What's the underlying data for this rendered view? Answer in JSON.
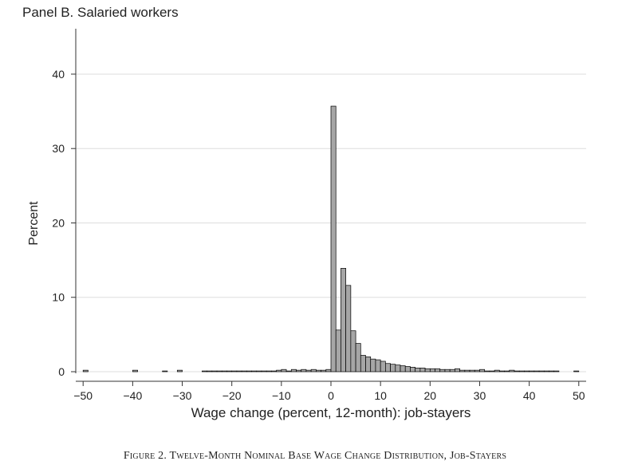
{
  "panel_title": "Panel B. Salaried workers",
  "figure_caption": "Figure 2. Twelve-Month Nominal Base Wage Change Distribution, Job-Stayers",
  "colors": {
    "bar_fill": "#a6a6a6",
    "bar_stroke": "#000000",
    "grid": "#dedede",
    "axis": "#333333"
  },
  "chart_data": {
    "type": "bar",
    "title": "Panel B. Salaried workers",
    "xlabel": "Wage change (percent, 12-month): job-stayers",
    "ylabel": "Percent",
    "xlim": [
      -51,
      51
    ],
    "ylim": [
      0,
      46
    ],
    "xticks": [
      -50,
      -40,
      -30,
      -20,
      -10,
      0,
      10,
      20,
      30,
      40,
      50
    ],
    "xtick_labels": [
      "−50",
      "−40",
      "−30",
      "−20",
      "−10",
      "0",
      "10",
      "20",
      "30",
      "40",
      "50"
    ],
    "yticks": [
      0,
      10,
      20,
      30,
      40
    ],
    "ytick_labels": [
      "0",
      "10",
      "20",
      "30",
      "40"
    ],
    "grid": true,
    "bin_width": 1,
    "bins": [
      {
        "x": -50,
        "y": 0.2
      },
      {
        "x": -40,
        "y": 0.2
      },
      {
        "x": -34,
        "y": 0.1
      },
      {
        "x": -31,
        "y": 0.2
      },
      {
        "x": -26,
        "y": 0.1
      },
      {
        "x": -25,
        "y": 0.1
      },
      {
        "x": -24,
        "y": 0.1
      },
      {
        "x": -23,
        "y": 0.1
      },
      {
        "x": -22,
        "y": 0.1
      },
      {
        "x": -21,
        "y": 0.1
      },
      {
        "x": -20,
        "y": 0.1
      },
      {
        "x": -19,
        "y": 0.1
      },
      {
        "x": -18,
        "y": 0.1
      },
      {
        "x": -17,
        "y": 0.1
      },
      {
        "x": -16,
        "y": 0.1
      },
      {
        "x": -15,
        "y": 0.1
      },
      {
        "x": -14,
        "y": 0.1
      },
      {
        "x": -13,
        "y": 0.1
      },
      {
        "x": -12,
        "y": 0.1
      },
      {
        "x": -11,
        "y": 0.2
      },
      {
        "x": -10,
        "y": 0.3
      },
      {
        "x": -9,
        "y": 0.1
      },
      {
        "x": -8,
        "y": 0.3
      },
      {
        "x": -7,
        "y": 0.2
      },
      {
        "x": -6,
        "y": 0.3
      },
      {
        "x": -5,
        "y": 0.2
      },
      {
        "x": -4,
        "y": 0.3
      },
      {
        "x": -3,
        "y": 0.2
      },
      {
        "x": -2,
        "y": 0.2
      },
      {
        "x": -1,
        "y": 0.3
      },
      {
        "x": 0,
        "y": 35.7
      },
      {
        "x": 1,
        "y": 5.6
      },
      {
        "x": 2,
        "y": 13.9
      },
      {
        "x": 3,
        "y": 11.6
      },
      {
        "x": 4,
        "y": 5.5
      },
      {
        "x": 5,
        "y": 3.8
      },
      {
        "x": 6,
        "y": 2.2
      },
      {
        "x": 7,
        "y": 2.0
      },
      {
        "x": 8,
        "y": 1.7
      },
      {
        "x": 9,
        "y": 1.6
      },
      {
        "x": 10,
        "y": 1.4
      },
      {
        "x": 11,
        "y": 1.1
      },
      {
        "x": 12,
        "y": 1.0
      },
      {
        "x": 13,
        "y": 0.9
      },
      {
        "x": 14,
        "y": 0.8
      },
      {
        "x": 15,
        "y": 0.7
      },
      {
        "x": 16,
        "y": 0.6
      },
      {
        "x": 17,
        "y": 0.5
      },
      {
        "x": 18,
        "y": 0.5
      },
      {
        "x": 19,
        "y": 0.4
      },
      {
        "x": 20,
        "y": 0.4
      },
      {
        "x": 21,
        "y": 0.4
      },
      {
        "x": 22,
        "y": 0.3
      },
      {
        "x": 23,
        "y": 0.3
      },
      {
        "x": 24,
        "y": 0.3
      },
      {
        "x": 25,
        "y": 0.4
      },
      {
        "x": 26,
        "y": 0.2
      },
      {
        "x": 27,
        "y": 0.2
      },
      {
        "x": 28,
        "y": 0.2
      },
      {
        "x": 29,
        "y": 0.2
      },
      {
        "x": 30,
        "y": 0.3
      },
      {
        "x": 31,
        "y": 0.1
      },
      {
        "x": 32,
        "y": 0.1
      },
      {
        "x": 33,
        "y": 0.2
      },
      {
        "x": 34,
        "y": 0.1
      },
      {
        "x": 35,
        "y": 0.1
      },
      {
        "x": 36,
        "y": 0.2
      },
      {
        "x": 37,
        "y": 0.1
      },
      {
        "x": 38,
        "y": 0.1
      },
      {
        "x": 39,
        "y": 0.1
      },
      {
        "x": 40,
        "y": 0.1
      },
      {
        "x": 41,
        "y": 0.1
      },
      {
        "x": 42,
        "y": 0.1
      },
      {
        "x": 43,
        "y": 0.1
      },
      {
        "x": 44,
        "y": 0.1
      },
      {
        "x": 45,
        "y": 0.1
      },
      {
        "x": 49,
        "y": 0.1
      }
    ]
  }
}
